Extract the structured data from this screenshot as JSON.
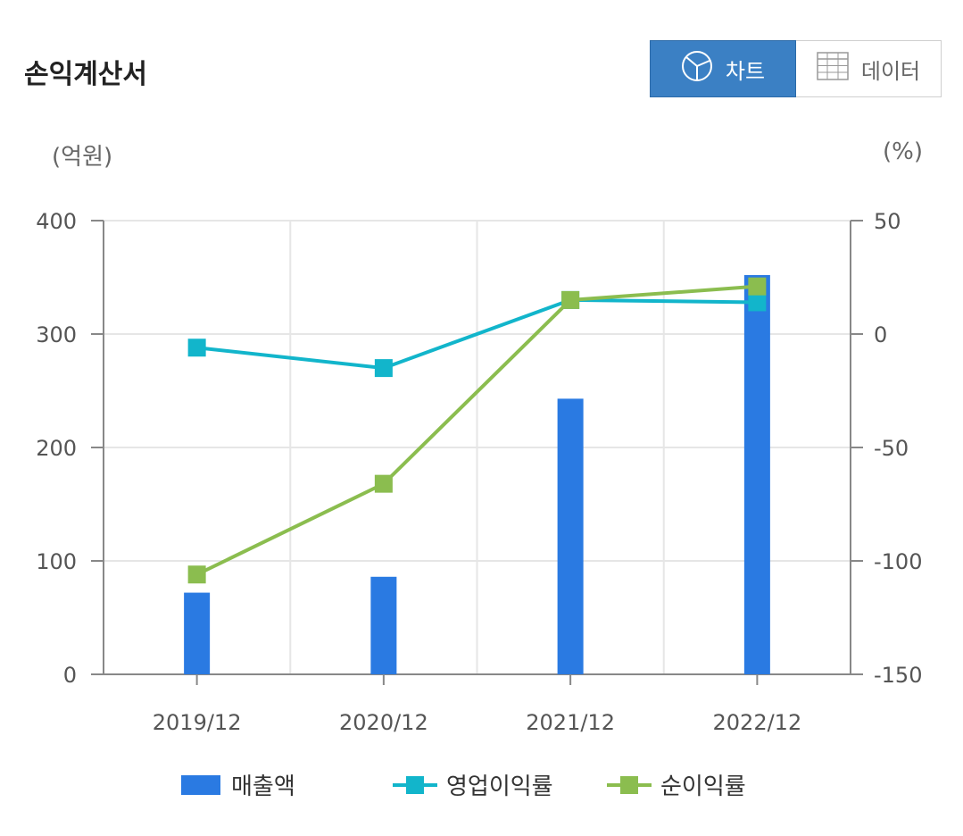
{
  "header": {
    "title": "손익계산서",
    "toggle_chart_label": "차트",
    "toggle_data_label": "데이터"
  },
  "colors": {
    "revenue": "#2a7ae2",
    "operating_margin": "#12b5cb",
    "net_margin": "#8bbd4f",
    "toggle_active": "#3b80c4"
  },
  "chart_data": {
    "type": "bar+line",
    "left_unit": "(억원)",
    "right_unit": "(%)",
    "categories": [
      "2019/12",
      "2020/12",
      "2021/12",
      "2022/12"
    ],
    "left_axis": {
      "min": 0,
      "max": 400,
      "ticks": [
        0,
        100,
        200,
        300,
        400
      ]
    },
    "right_axis": {
      "min": -150,
      "max": 50,
      "ticks": [
        -150,
        -100,
        -50,
        0,
        50
      ]
    },
    "series": [
      {
        "name": "매출액",
        "type": "bar",
        "axis": "left",
        "values": [
          72,
          86,
          243,
          352
        ]
      },
      {
        "name": "영업이익률",
        "type": "line",
        "axis": "right",
        "values": [
          -6,
          -15,
          15,
          14
        ]
      },
      {
        "name": "순이익률",
        "type": "line",
        "axis": "right",
        "values": [
          -106,
          -66,
          15,
          21
        ]
      }
    ],
    "grid": true,
    "legend_position": "bottom"
  }
}
